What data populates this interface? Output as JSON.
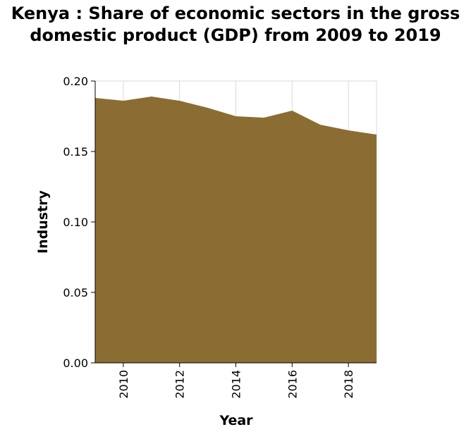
{
  "chart_data": {
    "type": "area",
    "title": "Kenya : Share of economic sectors in the gross domestic product (GDP) from 2009 to 2019",
    "xlabel": "Year",
    "ylabel": "Industry",
    "x": [
      2009,
      2010,
      2011,
      2012,
      2013,
      2014,
      2015,
      2016,
      2017,
      2018,
      2019
    ],
    "series": [
      {
        "values": [
          0.188,
          0.186,
          0.189,
          0.186,
          0.181,
          0.175,
          0.174,
          0.179,
          0.169,
          0.165,
          0.162
        ]
      }
    ],
    "xlim": [
      2009,
      2019
    ],
    "ylim": [
      0,
      0.2
    ],
    "xticks": [
      "2010",
      "2012",
      "2014",
      "2016",
      "2018"
    ],
    "yticks": [
      "0.00",
      "0.05",
      "0.10",
      "0.15",
      "0.20"
    ],
    "grid": true,
    "fill_color": "#8b6d33",
    "grid_color": "#d9d9d9"
  }
}
